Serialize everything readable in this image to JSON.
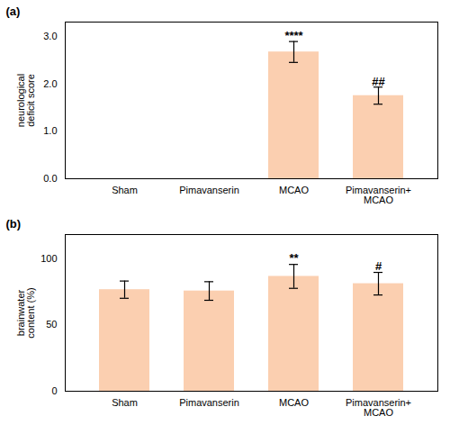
{
  "chart_data": [
    {
      "type": "bar",
      "title": "(a)",
      "categories": [
        "Sham",
        "Pimavanserin",
        "MCAO",
        "Pimavanserin+ MCAO"
      ],
      "values": [
        0.0,
        0.0,
        2.67,
        1.75
      ],
      "errors": [
        0.0,
        0.0,
        0.22,
        0.18
      ],
      "color": "#FBCFB0",
      "ylabel": "neurological\ndeficit score",
      "ylim": [
        0,
        3.3
      ],
      "yticks": [
        0,
        1,
        2,
        3
      ],
      "annotations": [
        {
          "category": "MCAO",
          "y": 2.93,
          "text": "****"
        },
        {
          "category": "Pimavanserin+ MCAO",
          "y": 1.97,
          "text": "##"
        }
      ]
    },
    {
      "type": "bar",
      "title": "(b)",
      "categories": [
        "Sham",
        "Pimavanserin",
        "MCAO",
        "Pimavanserin+ MCAO"
      ],
      "values": [
        76.5,
        75.5,
        86.5,
        81.0
      ],
      "errors": [
        6.5,
        7.0,
        9.0,
        8.5
      ],
      "color": "#FBCFB0",
      "ylabel": "brainwater\ncontent (%)",
      "ylim": [
        0,
        118
      ],
      "yticks": [
        0,
        50,
        100
      ],
      "annotations": [
        {
          "category": "MCAO",
          "y": 97.5,
          "text": "**"
        },
        {
          "category": "Pimavanserin+ MCAO",
          "y": 91.5,
          "text": "#"
        }
      ]
    }
  ]
}
